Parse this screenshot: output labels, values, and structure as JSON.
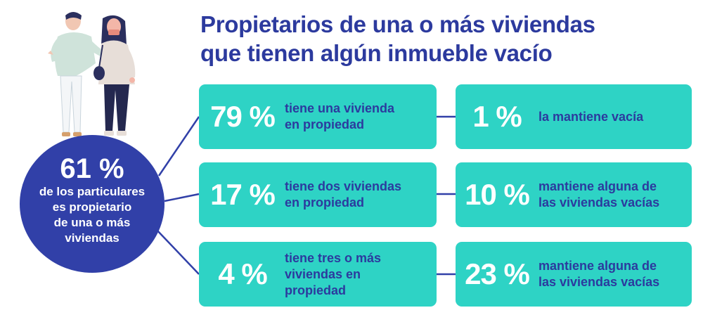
{
  "title": {
    "line1": "Propietarios de una o más viviendas",
    "line2": "que tienen algún inmueble vacío"
  },
  "circle": {
    "value": "61 %",
    "lines": [
      "de los particulares",
      "es propietario",
      "de una o más",
      "viviendas"
    ]
  },
  "rows": [
    {
      "owned_value": "79 %",
      "owned_lines": [
        "tiene una vivienda",
        "en propiedad"
      ],
      "empty_value": "1 %",
      "empty_lines": [
        "la mantiene vacía"
      ]
    },
    {
      "owned_value": "17 %",
      "owned_lines": [
        "tiene dos viviendas",
        "en propiedad"
      ],
      "empty_value": "10 %",
      "empty_lines": [
        "mantiene alguna de",
        "las viviendas vacías"
      ]
    },
    {
      "owned_value": "4 %",
      "owned_lines": [
        "tiene tres o más",
        "viviendas en",
        "propiedad"
      ],
      "empty_value": "23 %",
      "empty_lines": [
        "mantiene alguna de",
        "las viviendas vacías"
      ]
    }
  ],
  "colors": {
    "navy": "#3140a8",
    "title": "#2c3a9e",
    "teal": "#2ed3c5",
    "white": "#ffffff"
  },
  "illustration": "couple-walking-illustration"
}
